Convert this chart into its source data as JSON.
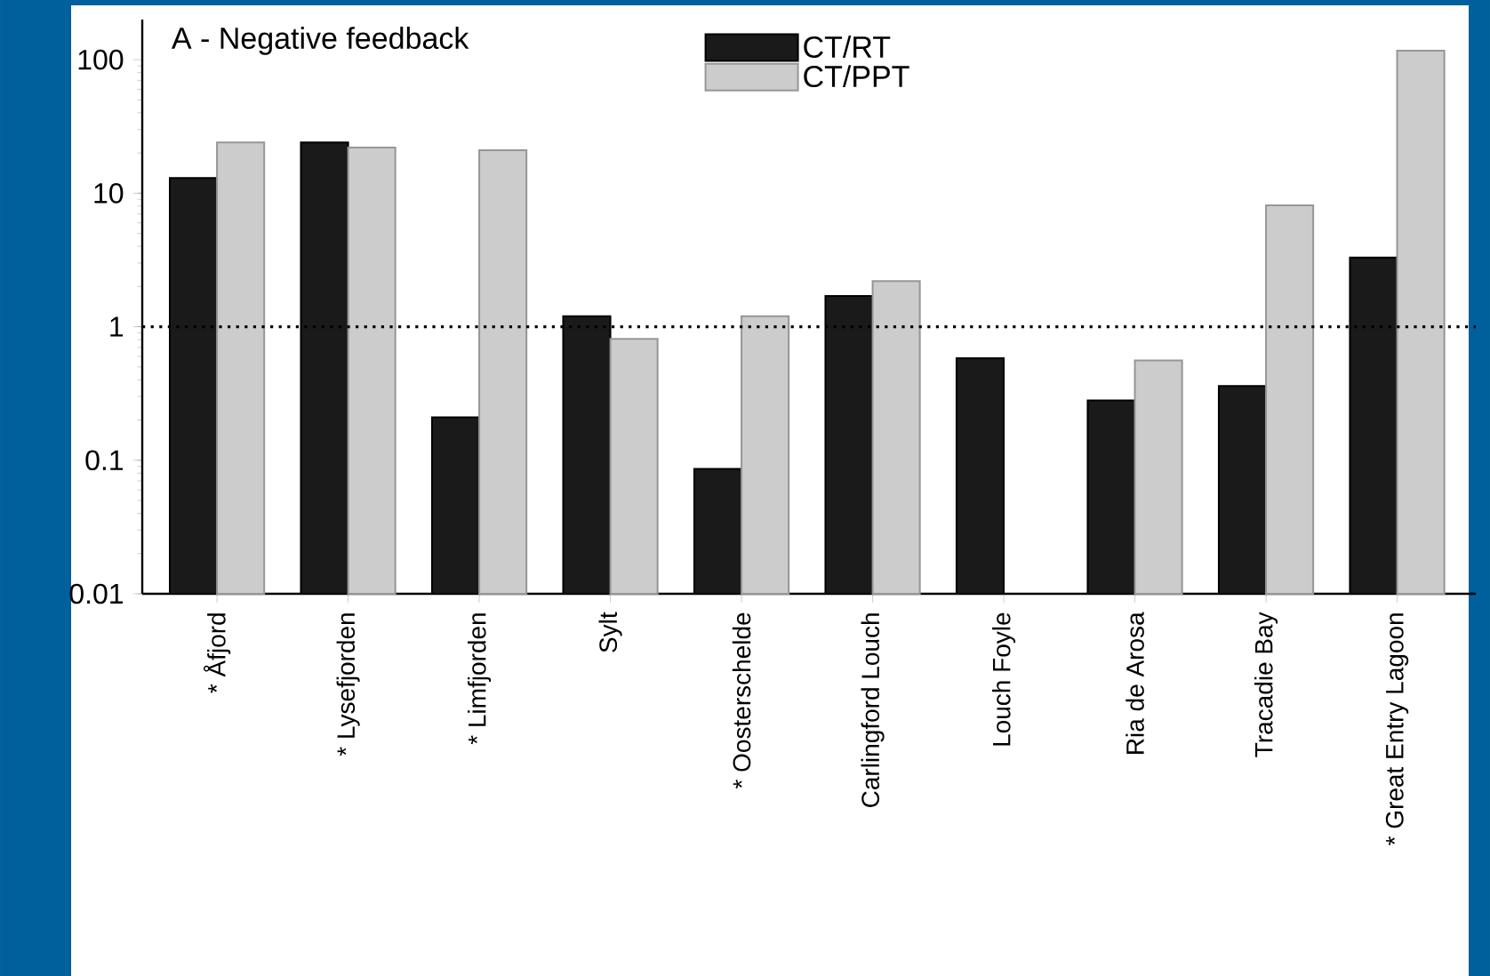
{
  "chart_data": {
    "type": "bar",
    "title": "A - Negative feedback",
    "categories": [
      "* Åfjord",
      "* Lysefjorden",
      "* Limfjorden",
      "Sylt",
      "* Oosterschelde",
      "Carlingford Louch",
      "Louch Foyle",
      "Ria de Arosa",
      "Tracadie Bay",
      "* Great Entry Lagoon"
    ],
    "series": [
      {
        "name": "CT/RT",
        "color": "#1a1a1a",
        "values": [
          13,
          24,
          0.21,
          1.2,
          0.086,
          1.7,
          0.58,
          0.28,
          0.36,
          3.3
        ]
      },
      {
        "name": "CT/PPT",
        "color": "#cccccc",
        "values": [
          24,
          22,
          21,
          0.81,
          1.2,
          2.2,
          null,
          0.56,
          8.1,
          117
        ]
      }
    ],
    "log": "y",
    "ylim": [
      0.01,
      200
    ],
    "yticks": [
      0.01,
      0.1,
      1,
      10,
      100
    ],
    "ref_lines": [
      {
        "axis": "y",
        "value": 1,
        "line_style": "dotted",
        "color": "#000000"
      }
    ],
    "legend": "top",
    "grid": false
  }
}
